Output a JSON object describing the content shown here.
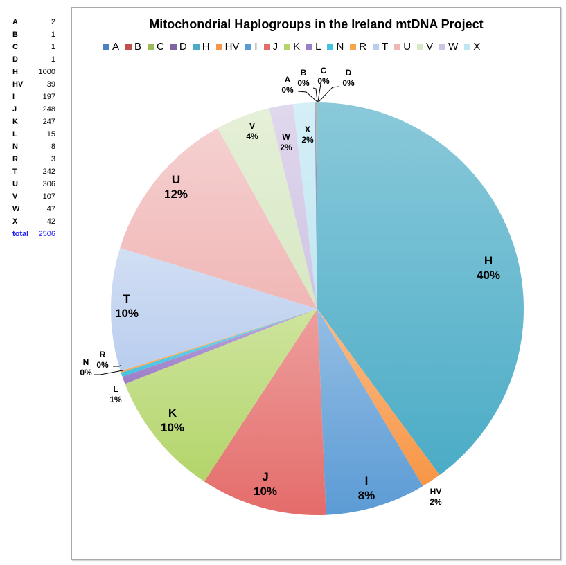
{
  "side_table": {
    "rows": [
      {
        "key": "A",
        "value": "2"
      },
      {
        "key": "B",
        "value": "1"
      },
      {
        "key": "C",
        "value": "1"
      },
      {
        "key": "D",
        "value": "1"
      },
      {
        "key": "H",
        "value": "1000"
      },
      {
        "key": "HV",
        "value": "39"
      },
      {
        "key": "I",
        "value": "197"
      },
      {
        "key": "J",
        "value": "248"
      },
      {
        "key": "K",
        "value": "247"
      },
      {
        "key": "L",
        "value": "15"
      },
      {
        "key": "N",
        "value": "8"
      },
      {
        "key": "R",
        "value": "3"
      },
      {
        "key": "T",
        "value": "242"
      },
      {
        "key": "U",
        "value": "306"
      },
      {
        "key": "V",
        "value": "107"
      },
      {
        "key": "W",
        "value": "47"
      },
      {
        "key": "X",
        "value": "42"
      }
    ],
    "total": {
      "key": "total",
      "value": "2506"
    }
  },
  "chart_data": {
    "type": "pie",
    "title": "Mitochondrial Haplogroups in the Ireland mtDNA Project",
    "legend_position": "top",
    "categories": [
      "A",
      "B",
      "C",
      "D",
      "H",
      "HV",
      "I",
      "J",
      "K",
      "L",
      "N",
      "R",
      "T",
      "U",
      "V",
      "W",
      "X"
    ],
    "values": [
      2,
      1,
      1,
      1,
      1000,
      39,
      197,
      248,
      247,
      15,
      8,
      3,
      242,
      306,
      107,
      47,
      42
    ],
    "total": 2506,
    "percent_labels": [
      "0%",
      "0%",
      "0%",
      "0%",
      "40%",
      "2%",
      "8%",
      "10%",
      "10%",
      "1%",
      "0%",
      "0%",
      "10%",
      "12%",
      "4%",
      "2%",
      "2%"
    ],
    "colors": {
      "A": "#4f81bd",
      "B": "#c0504d",
      "C": "#9bbb59",
      "D": "#8064a2",
      "H": "#4bacc6",
      "HV": "#f79646",
      "I": "#5b9bd5",
      "J": "#e46c6a",
      "K": "#b3d56a",
      "L": "#9b7ec8",
      "N": "#45c2e0",
      "R": "#f9a64a",
      "T": "#b9cdee",
      "U": "#f0b7b6",
      "V": "#d7e8c3",
      "W": "#cfc3e3",
      "X": "#bfe6f2"
    },
    "slice_order_clockwise_from_top": [
      "H",
      "HV",
      "I",
      "J",
      "K",
      "L",
      "N",
      "R",
      "T",
      "U",
      "V",
      "W",
      "X",
      "A",
      "B",
      "C",
      "D"
    ]
  }
}
